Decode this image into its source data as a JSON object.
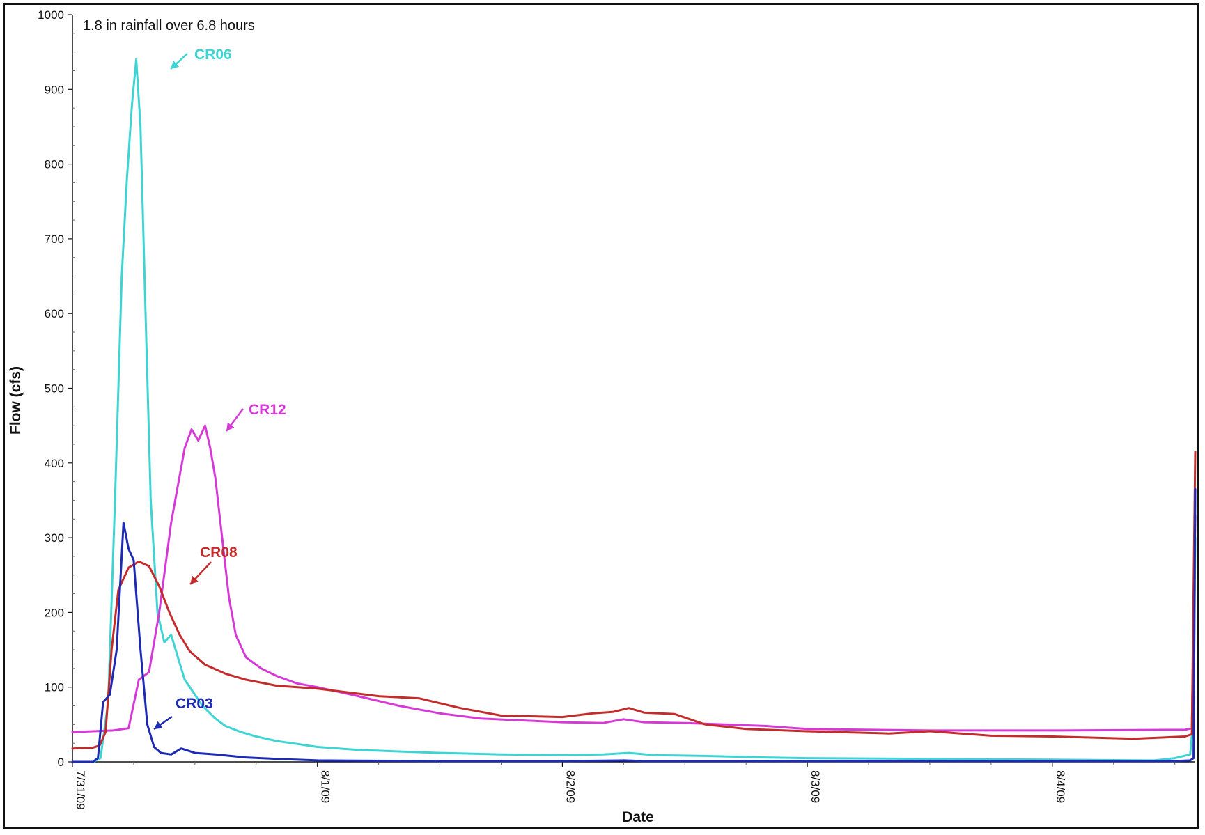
{
  "chart_data": {
    "type": "line",
    "xlabel": "Date",
    "ylabel": "Flow (cfs)",
    "annotation": "1.8 in rainfall over 6.8 hours",
    "ylim": [
      0,
      1000
    ],
    "yticks": [
      0,
      100,
      200,
      300,
      400,
      500,
      600,
      700,
      800,
      900,
      1000
    ],
    "xlim": [
      "7/31/09 0:00",
      "8/4/09 14:00"
    ],
    "xticks": [
      "7/31/09",
      "8/1/09",
      "8/2/09",
      "8/3/09",
      "8/4/09"
    ],
    "grid": false,
    "legend": "none",
    "series": [
      {
        "name": "CR06",
        "color": "#3fd4d4",
        "x": [
          "7/31/09 0:00",
          "7/31/09 2:00",
          "7/31/09 2:45",
          "7/31/09 3:30",
          "7/31/09 4:10",
          "7/31/09 4:50",
          "7/31/09 5:20",
          "7/31/09 5:50",
          "7/31/09 6:15",
          "7/31/09 6:40",
          "7/31/09 7:10",
          "7/31/09 7:40",
          "7/31/09 8:20",
          "7/31/09 9:00",
          "7/31/09 9:40",
          "7/31/09 10:20",
          "7/31/09 11:00",
          "7/31/09 11:45",
          "7/31/09 12:15",
          "7/31/09 12:45",
          "7/31/09 13:15",
          "7/31/09 14:00",
          "7/31/09 15:00",
          "7/31/09 16:30",
          "7/31/09 18:00",
          "7/31/09 20:00",
          "7/31/09 22:00",
          "8/1/09 0:00",
          "8/1/09 4:00",
          "8/1/09 8:00",
          "8/1/09 12:00",
          "8/1/09 18:00",
          "8/2/09 0:00",
          "8/2/09 4:00",
          "8/2/09 6:30",
          "8/2/09 9:00",
          "8/2/09 14:00",
          "8/2/09 20:00",
          "8/3/09 0:00",
          "8/3/09 12:00",
          "8/4/09 0:00",
          "8/4/09 10:00",
          "8/4/09 12:00",
          "8/4/09 13:30",
          "8/4/09 13:50",
          "8/4/09 14:00"
        ],
        "y": [
          0,
          0,
          5,
          80,
          350,
          650,
          780,
          880,
          940,
          850,
          600,
          350,
          200,
          160,
          170,
          140,
          110,
          95,
          85,
          75,
          68,
          58,
          48,
          40,
          34,
          28,
          24,
          20,
          16,
          14,
          12,
          10,
          9,
          10,
          12,
          9,
          8,
          6,
          5,
          4,
          3,
          2,
          5,
          10,
          60,
          300
        ]
      },
      {
        "name": "CR12",
        "color": "#d63ad6",
        "x": [
          "7/31/09 0:00",
          "7/31/09 4:00",
          "7/31/09 5:30",
          "7/31/09 6:30",
          "7/31/09 7:30",
          "7/31/09 8:30",
          "7/31/09 9:40",
          "7/31/09 11:00",
          "7/31/09 11:40",
          "7/31/09 12:20",
          "7/31/09 13:00",
          "7/31/09 13:30",
          "7/31/09 14:00",
          "7/31/09 14:40",
          "7/31/09 15:20",
          "7/31/09 16:00",
          "7/31/09 17:00",
          "7/31/09 18:30",
          "7/31/09 20:00",
          "7/31/09 22:00",
          "8/1/09 0:00",
          "8/1/09 4:00",
          "8/1/09 8:00",
          "8/1/09 12:00",
          "8/1/09 16:00",
          "8/2/09 0:00",
          "8/2/09 4:00",
          "8/2/09 6:00",
          "8/2/09 8:00",
          "8/2/09 12:00",
          "8/2/09 20:00",
          "8/3/09 0:00",
          "8/3/09 12:00",
          "8/4/09 0:00",
          "8/4/09 13:00",
          "8/4/09 13:40",
          "8/4/09 14:00"
        ],
        "y": [
          40,
          42,
          45,
          110,
          120,
          200,
          320,
          420,
          445,
          430,
          450,
          420,
          380,
          300,
          220,
          170,
          140,
          125,
          115,
          105,
          100,
          88,
          75,
          65,
          58,
          53,
          52,
          57,
          53,
          52,
          48,
          44,
          42,
          42,
          43,
          45,
          330
        ]
      },
      {
        "name": "CR08",
        "color": "#c42c2c",
        "x": [
          "7/31/09 0:00",
          "7/31/09 2:00",
          "7/31/09 2:40",
          "7/31/09 3:15",
          "7/31/09 3:50",
          "7/31/09 4:30",
          "7/31/09 5:30",
          "7/31/09 6:30",
          "7/31/09 7:30",
          "7/31/09 8:30",
          "7/31/09 9:30",
          "7/31/09 10:30",
          "7/31/09 11:30",
          "7/31/09 13:00",
          "7/31/09 15:00",
          "7/31/09 17:00",
          "7/31/09 20:00",
          "8/1/09 0:00",
          "8/1/09 6:00",
          "8/1/09 10:00",
          "8/1/09 14:00",
          "8/1/09 18:00",
          "8/2/09 0:00",
          "8/2/09 3:00",
          "8/2/09 5:00",
          "8/2/09 6:30",
          "8/2/09 8:00",
          "8/2/09 11:00",
          "8/2/09 14:00",
          "8/2/09 18:00",
          "8/3/09 0:00",
          "8/3/09 8:00",
          "8/3/09 12:00",
          "8/3/09 18:00",
          "8/4/09 0:00",
          "8/4/09 8:00",
          "8/4/09 13:00",
          "8/4/09 13:40",
          "8/4/09 14:00"
        ],
        "y": [
          18,
          19,
          22,
          40,
          150,
          230,
          260,
          268,
          262,
          235,
          200,
          170,
          148,
          130,
          118,
          110,
          102,
          98,
          88,
          85,
          72,
          62,
          60,
          65,
          67,
          72,
          66,
          64,
          50,
          44,
          41,
          38,
          41,
          35,
          34,
          31,
          34,
          37,
          415
        ]
      },
      {
        "name": "CR03",
        "color": "#1c2ab4",
        "x": [
          "7/31/09 0:00",
          "7/31/09 2:00",
          "7/31/09 2:30",
          "7/31/09 3:00",
          "7/31/09 3:40",
          "7/31/09 4:20",
          "7/31/09 5:00",
          "7/31/09 5:30",
          "7/31/09 6:00",
          "7/31/09 6:40",
          "7/31/09 7:20",
          "7/31/09 8:00",
          "7/31/09 8:40",
          "7/31/09 9:40",
          "7/31/09 10:40",
          "7/31/09 12:00",
          "7/31/09 14:00",
          "7/31/09 17:00",
          "7/31/09 20:00",
          "8/1/09 0:00",
          "8/1/09 12:00",
          "8/2/09 0:00",
          "8/2/09 6:00",
          "8/2/09 8:00",
          "8/2/09 20:00",
          "8/3/09 12:00",
          "8/4/09 0:00",
          "8/4/09 12:00",
          "8/4/09 13:30",
          "8/4/09 13:50",
          "8/4/09 14:00"
        ],
        "y": [
          0,
          0,
          5,
          80,
          90,
          150,
          320,
          285,
          270,
          150,
          50,
          20,
          12,
          10,
          18,
          12,
          10,
          6,
          4,
          2,
          1,
          1,
          2,
          1,
          1,
          1,
          1,
          1,
          2,
          5,
          365
        ]
      }
    ],
    "labels": [
      {
        "series": "CR06",
        "text": "CR06"
      },
      {
        "series": "CR12",
        "text": "CR12"
      },
      {
        "series": "CR08",
        "text": "CR08"
      },
      {
        "series": "CR03",
        "text": "CR03"
      }
    ]
  }
}
